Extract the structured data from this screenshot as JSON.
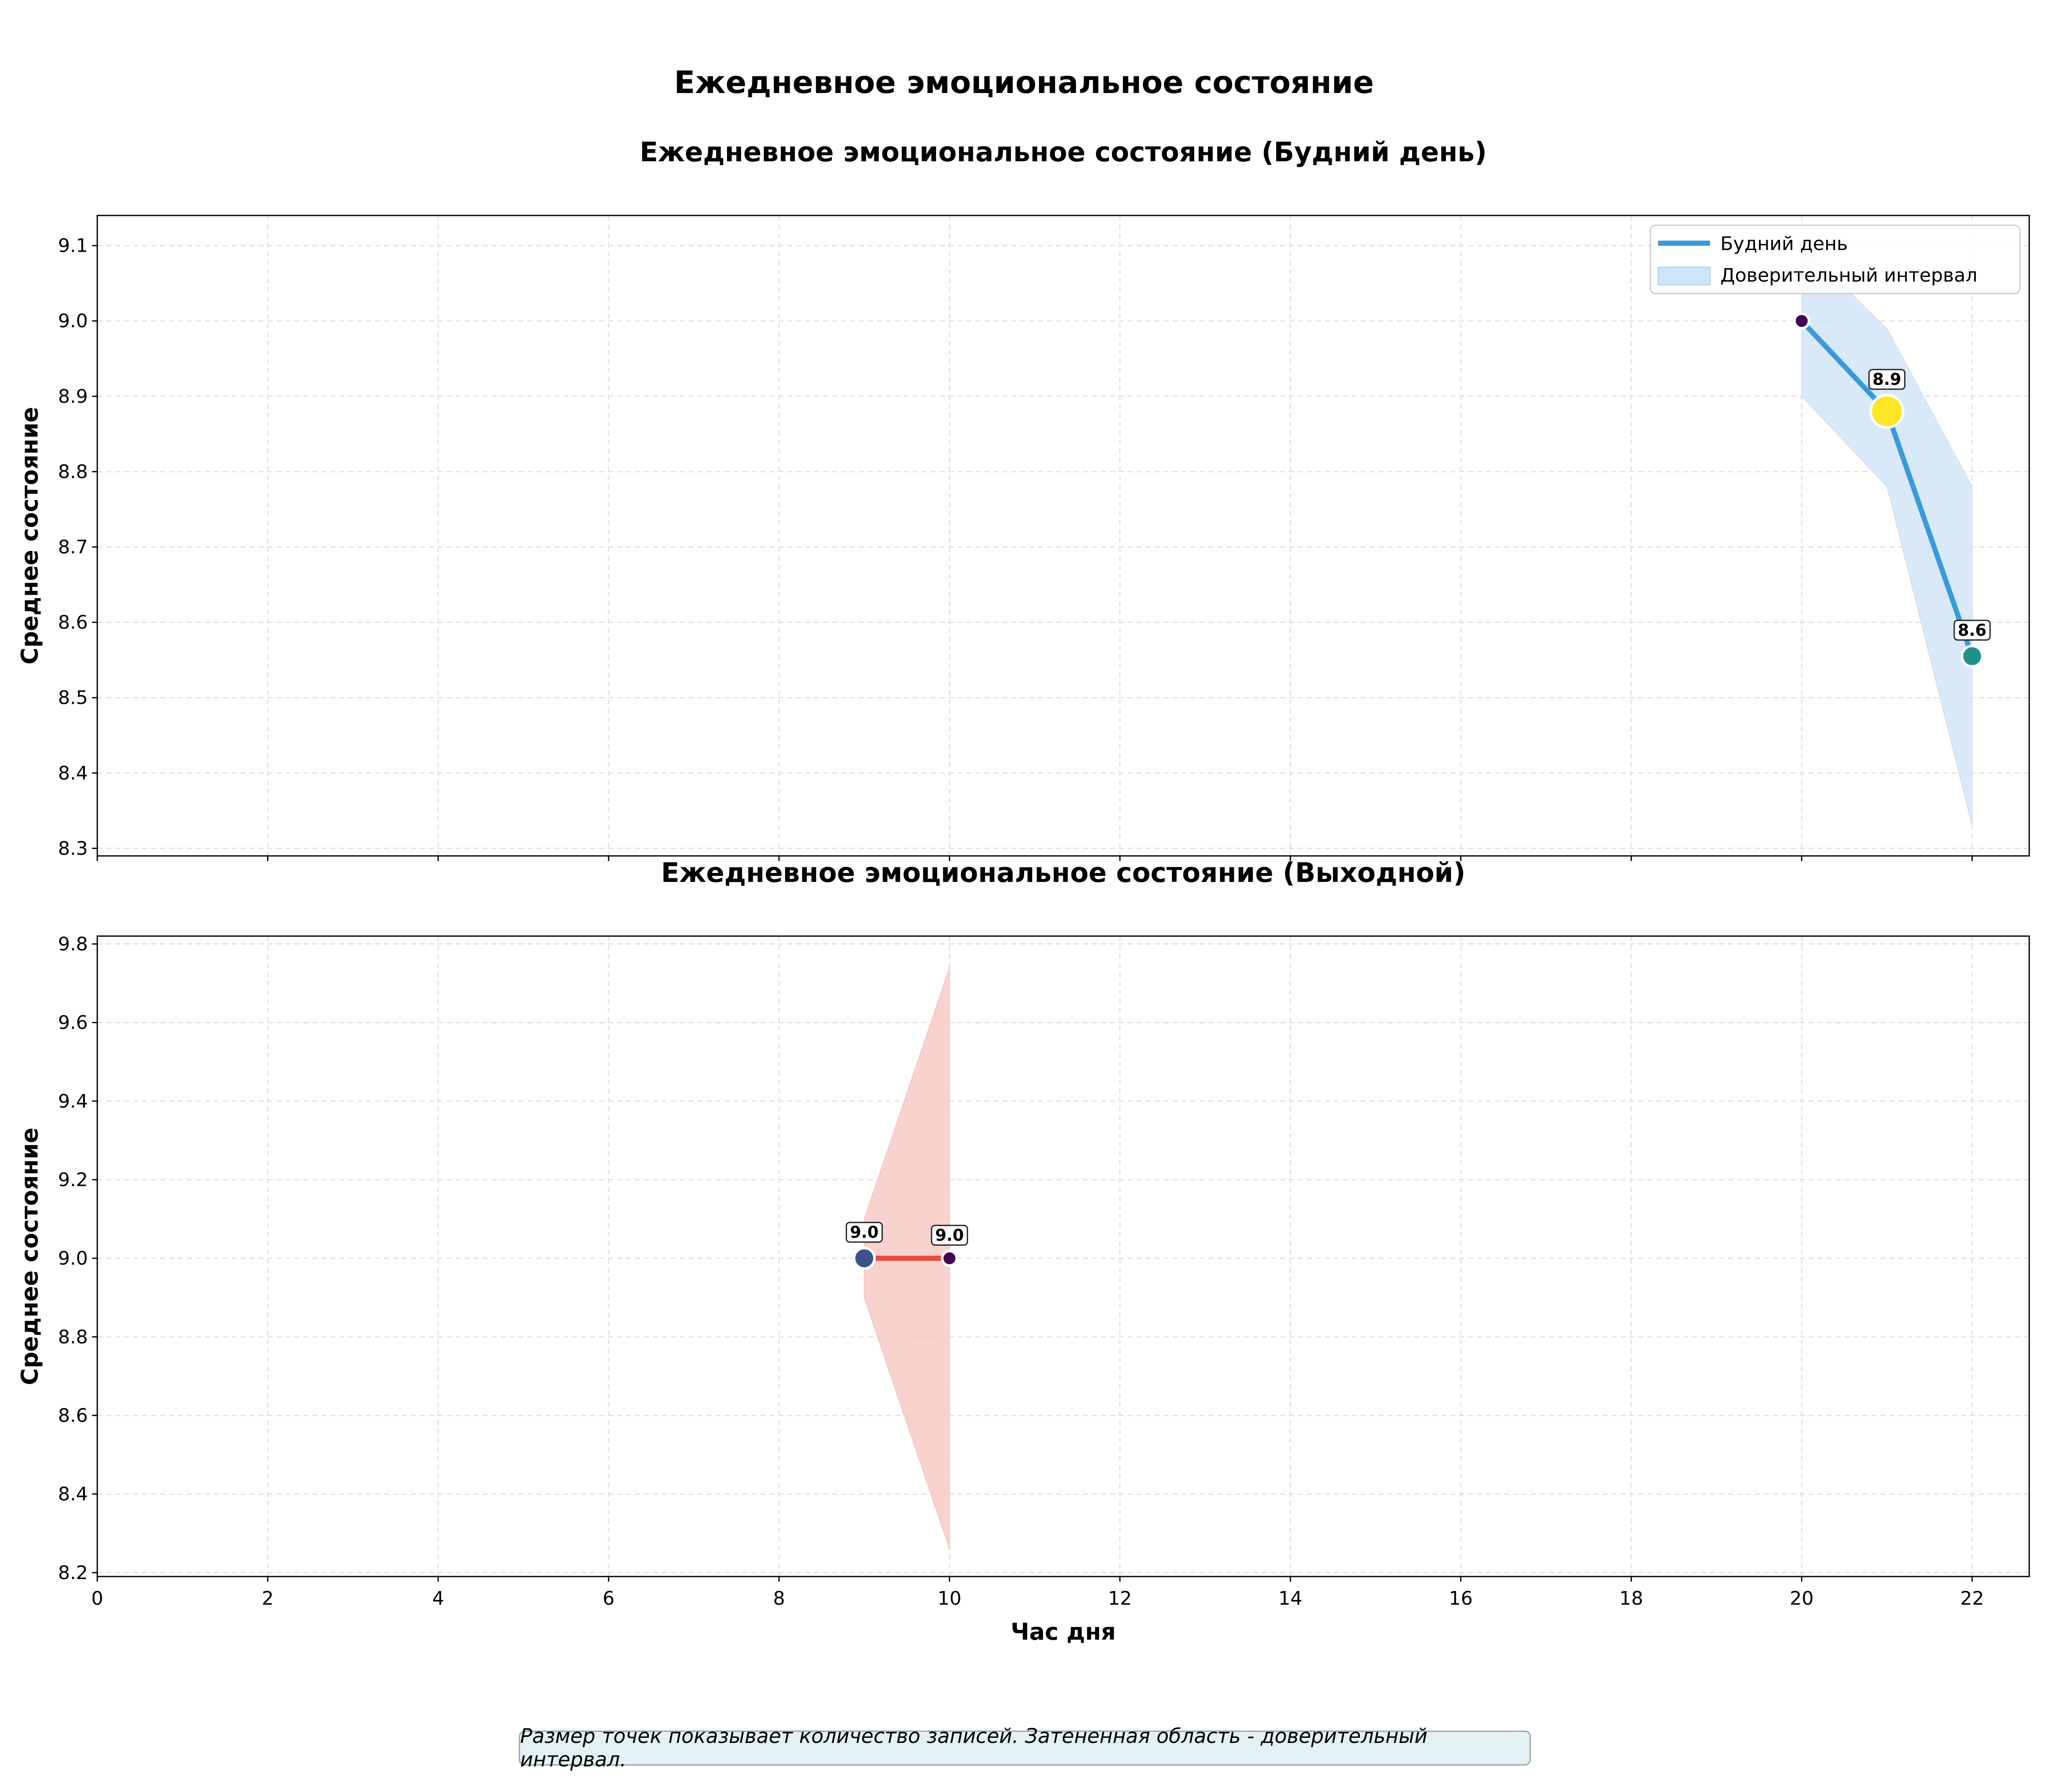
{
  "suptitle": "Ежедневное эмоциональное состояние",
  "note": "Размер точек показывает количество записей. Затененная область - доверительный интервал.",
  "chart_data": [
    {
      "type": "line",
      "title": "Ежедневное эмоциональное состояние (Будний день)",
      "xlabel": "",
      "ylabel": "Среднее состояние",
      "xlim": [
        0,
        22.67
      ],
      "ylim": [
        8.29,
        9.14
      ],
      "xticks": [
        0,
        2,
        4,
        6,
        8,
        10,
        12,
        14,
        16,
        18,
        20,
        22
      ],
      "show_xtick_labels": false,
      "yticks": [
        8.3,
        8.4,
        8.5,
        8.6,
        8.7,
        8.8,
        8.9,
        9.0,
        9.1
      ],
      "ytick_labels": [
        "8.3",
        "8.4",
        "8.5",
        "8.6",
        "8.7",
        "8.8",
        "8.9",
        "9.0",
        "9.1"
      ],
      "grid": true,
      "legend_position": "top-right",
      "legend": [
        "Будний день",
        "Доверительный интервал"
      ],
      "line_color": "#3a9ad9",
      "band_color": "#cfe4f6",
      "series": [
        {
          "name": "Будний день",
          "x": [
            20,
            21,
            22
          ],
          "y": [
            9.0,
            8.88,
            8.555
          ],
          "ci_low": [
            8.9,
            8.78,
            8.33
          ],
          "ci_high": [
            9.1,
            8.99,
            8.78
          ],
          "marker_colors": [
            "#440154",
            "#fde725",
            "#21918c"
          ],
          "marker_sizes": [
            1,
            3,
            2
          ],
          "data_labels": [
            "",
            "8.9",
            "8.6"
          ]
        }
      ]
    },
    {
      "type": "line",
      "title": "Ежедневное эмоциональное состояние (Выходной)",
      "xlabel": "Час дня",
      "ylabel": "Среднее состояние",
      "xlim": [
        0,
        22.67
      ],
      "ylim": [
        8.19,
        9.82
      ],
      "xticks": [
        0,
        2,
        4,
        6,
        8,
        10,
        12,
        14,
        16,
        18,
        20,
        22
      ],
      "xtick_labels": [
        "0",
        "2",
        "4",
        "6",
        "8",
        "10",
        "12",
        "14",
        "16",
        "18",
        "20",
        "22"
      ],
      "show_xtick_labels": true,
      "yticks": [
        8.2,
        8.4,
        8.6,
        8.8,
        9.0,
        9.2,
        9.4,
        9.6,
        9.8
      ],
      "ytick_labels": [
        "8.2",
        "8.4",
        "8.6",
        "8.8",
        "9.0",
        "9.2",
        "9.4",
        "9.6",
        "9.8"
      ],
      "grid": true,
      "line_color": "#e74c3c",
      "band_color": "#f7c6c1",
      "series": [
        {
          "x": [
            9,
            10
          ],
          "y": [
            9.0,
            9.0
          ],
          "ci_low": [
            8.9,
            8.26
          ],
          "ci_high": [
            9.1,
            9.74
          ],
          "marker_colors": [
            "#3b528b",
            "#440154"
          ],
          "marker_sizes": [
            2,
            1
          ],
          "data_labels": [
            "9.0",
            "9.0"
          ]
        }
      ]
    }
  ]
}
